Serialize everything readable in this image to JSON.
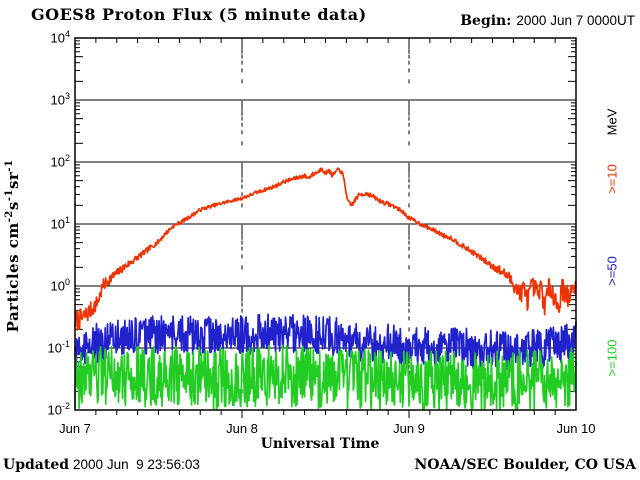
{
  "header": {
    "title": "GOES8 Proton Flux (5 minute data)",
    "begin_label": "Begin:",
    "begin_value": "2000 Jun 7 0000UT"
  },
  "footer": {
    "updated_label": "Updated",
    "updated_value": "2000 Jun  9 23:56:03",
    "credit": "NOAA/SEC Boulder, CO USA"
  },
  "chart_data": {
    "type": "line",
    "title": "GOES8 Proton Flux (5 minute data)",
    "xlabel": "Universal Time",
    "ylabel": "Particles cm^-2 s^-1 sr^-1",
    "ylabel_segments": [
      [
        "t",
        "Particles cm"
      ],
      [
        "sup",
        "-2"
      ],
      [
        "t",
        "s"
      ],
      [
        "sup",
        "-1"
      ],
      [
        "t",
        "sr"
      ],
      [
        "sup",
        "-1"
      ]
    ],
    "x_axis": {
      "range_hours": [
        0,
        72
      ],
      "minor_step_hours": 3,
      "ticks": [
        {
          "hour": 0,
          "label": "Jun 7"
        },
        {
          "hour": 24,
          "label": "Jun 8"
        },
        {
          "hour": 48,
          "label": "Jun 9"
        },
        {
          "hour": 72,
          "label": "Jun 10"
        }
      ]
    },
    "y_axis": {
      "log_range": [
        -2,
        4
      ],
      "tick_exponents": [
        4,
        3,
        2,
        1,
        0,
        -1,
        -2
      ],
      "unit": "MeV"
    },
    "grid": {
      "horizontal_decades": [
        3,
        2,
        1,
        0,
        -1
      ],
      "vertical_dashed_hours": [
        24,
        48
      ]
    },
    "sample_step_hours": 0.083333,
    "series": [
      {
        "label": ">=50",
        "color": "#2222cc",
        "seed": 1234567,
        "noise_log": 0.32,
        "anchors": [
          [
            0,
            0.08
          ],
          [
            2,
            0.11
          ],
          [
            4,
            0.13
          ],
          [
            8,
            0.15
          ],
          [
            12,
            0.16
          ],
          [
            16,
            0.16
          ],
          [
            20,
            0.15
          ],
          [
            24,
            0.16
          ],
          [
            28,
            0.17
          ],
          [
            32,
            0.17
          ],
          [
            36,
            0.16
          ],
          [
            38,
            0.15
          ],
          [
            40,
            0.13
          ],
          [
            44,
            0.12
          ],
          [
            48,
            0.11
          ],
          [
            52,
            0.1
          ],
          [
            56,
            0.1
          ],
          [
            60,
            0.095
          ],
          [
            64,
            0.09
          ],
          [
            68,
            0.1
          ],
          [
            72,
            0.13
          ]
        ]
      },
      {
        "label": ">=100",
        "color": "#22cc22",
        "seed": 987654321,
        "noise_log": 0.5,
        "anchors": [
          [
            0,
            0.03
          ],
          [
            4,
            0.035
          ],
          [
            8,
            0.035
          ],
          [
            12,
            0.035
          ],
          [
            16,
            0.033
          ],
          [
            20,
            0.032
          ],
          [
            24,
            0.034
          ],
          [
            28,
            0.035
          ],
          [
            32,
            0.035
          ],
          [
            36,
            0.033
          ],
          [
            40,
            0.03
          ],
          [
            44,
            0.03
          ],
          [
            48,
            0.03
          ],
          [
            52,
            0.03
          ],
          [
            56,
            0.028
          ],
          [
            60,
            0.028
          ],
          [
            64,
            0.03
          ],
          [
            68,
            0.032
          ],
          [
            72,
            0.035
          ]
        ]
      },
      {
        "label": ">=10",
        "color": "#ee3300",
        "seed": 7,
        "noise_log": [
          [
            0,
            0.18
          ],
          [
            3,
            0.12
          ],
          [
            6,
            0.07
          ],
          [
            10,
            0.045
          ],
          [
            14,
            0.03
          ],
          [
            24,
            0.025
          ],
          [
            34,
            0.035
          ],
          [
            38,
            0.035
          ],
          [
            40,
            0.04
          ],
          [
            48,
            0.03
          ],
          [
            54,
            0.035
          ],
          [
            58,
            0.045
          ],
          [
            60,
            0.06
          ],
          [
            62,
            0.09
          ],
          [
            63.5,
            0.15
          ],
          [
            66,
            0.18
          ],
          [
            72,
            0.18
          ]
        ],
        "anchors": [
          [
            0,
            0.27
          ],
          [
            1,
            0.3
          ],
          [
            2,
            0.38
          ],
          [
            3,
            0.5
          ],
          [
            3.5,
            0.65
          ],
          [
            4,
            1.0
          ],
          [
            5,
            1.3
          ],
          [
            6,
            1.6
          ],
          [
            7,
            2.0
          ],
          [
            8,
            2.4
          ],
          [
            9,
            2.9
          ],
          [
            10,
            3.5
          ],
          [
            11,
            4.3
          ],
          [
            12,
            5.2
          ],
          [
            13,
            7.0
          ],
          [
            14,
            9.0
          ],
          [
            15,
            10.5
          ],
          [
            16,
            12
          ],
          [
            18,
            17
          ],
          [
            20,
            20
          ],
          [
            22,
            23
          ],
          [
            24,
            26
          ],
          [
            26,
            32
          ],
          [
            28,
            38
          ],
          [
            29,
            42
          ],
          [
            30,
            48
          ],
          [
            31,
            52
          ],
          [
            32,
            56
          ],
          [
            33,
            60
          ],
          [
            33.5,
            55
          ],
          [
            34,
            62
          ],
          [
            35,
            70
          ],
          [
            35.5,
            80
          ],
          [
            36,
            64
          ],
          [
            36.5,
            74
          ],
          [
            37,
            60
          ],
          [
            37.5,
            70
          ],
          [
            38,
            76
          ],
          [
            38.5,
            62
          ],
          [
            38.8,
            42
          ],
          [
            39.2,
            23
          ],
          [
            39.6,
            20
          ],
          [
            40,
            22
          ],
          [
            40.5,
            27
          ],
          [
            41,
            30
          ],
          [
            42,
            31
          ],
          [
            43,
            27
          ],
          [
            44,
            23
          ],
          [
            45,
            21
          ],
          [
            46,
            19
          ],
          [
            47,
            16
          ],
          [
            48,
            12.5
          ],
          [
            49,
            11
          ],
          [
            50,
            9.5
          ],
          [
            51,
            8.5
          ],
          [
            52,
            7.5
          ],
          [
            53,
            6.5
          ],
          [
            54,
            6.0
          ],
          [
            55,
            5.0
          ],
          [
            56,
            4.2
          ],
          [
            57,
            3.6
          ],
          [
            58,
            3.0
          ],
          [
            59,
            2.5
          ],
          [
            60,
            2.1
          ],
          [
            61,
            1.8
          ],
          [
            62,
            1.5
          ],
          [
            63,
            1.1
          ],
          [
            63.5,
            0.9
          ],
          [
            64,
            0.75
          ],
          [
            64.5,
            0.9
          ],
          [
            65,
            0.6
          ],
          [
            65.5,
            0.85
          ],
          [
            66,
            0.95
          ],
          [
            66.5,
            0.7
          ],
          [
            67,
            0.9
          ],
          [
            67.5,
            0.5
          ],
          [
            68,
            0.85
          ],
          [
            68.5,
            0.95
          ],
          [
            69,
            0.6
          ],
          [
            69.5,
            0.45
          ],
          [
            70,
            0.9
          ],
          [
            70.5,
            0.8
          ],
          [
            71,
            0.6
          ],
          [
            71.5,
            0.85
          ],
          [
            72,
            0.95
          ]
        ]
      }
    ]
  }
}
